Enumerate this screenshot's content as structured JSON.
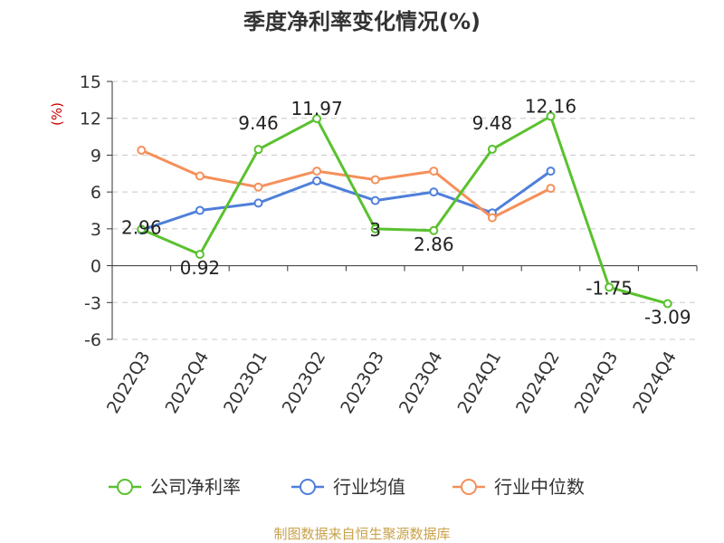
{
  "chart_data": {
    "type": "line",
    "title": "季度净利率变化情况(%)",
    "ylabel": "(%)",
    "categories": [
      "2022Q3",
      "2022Q4",
      "2023Q1",
      "2023Q2",
      "2023Q3",
      "2023Q4",
      "2024Q1",
      "2024Q2",
      "2024Q3",
      "2024Q4"
    ],
    "ylim": [
      -6,
      15
    ],
    "yticks": [
      -6,
      -3,
      0,
      3,
      6,
      9,
      12,
      15
    ],
    "grid": true,
    "legend_position": "bottom",
    "series": [
      {
        "name": "公司净利率",
        "color": "#5ac12e",
        "values": [
          2.96,
          0.92,
          9.46,
          11.97,
          3,
          2.86,
          9.48,
          12.16,
          -1.75,
          -3.09
        ],
        "labels": [
          "2.96",
          "0.92",
          "9.46",
          "11.97",
          "3",
          "2.86",
          "9.48",
          "12.16",
          "-1.75",
          "-3.09"
        ]
      },
      {
        "name": "行业均值",
        "color": "#4f7fda",
        "values": [
          2.9,
          4.5,
          5.1,
          6.9,
          5.3,
          6.0,
          4.3,
          7.7,
          null,
          null
        ]
      },
      {
        "name": "行业中位数",
        "color": "#f4905a",
        "values": [
          9.4,
          7.3,
          6.4,
          7.7,
          7.0,
          7.7,
          3.9,
          6.3,
          null,
          null
        ]
      }
    ]
  },
  "source": "制图数据来自恒生聚源数据库"
}
